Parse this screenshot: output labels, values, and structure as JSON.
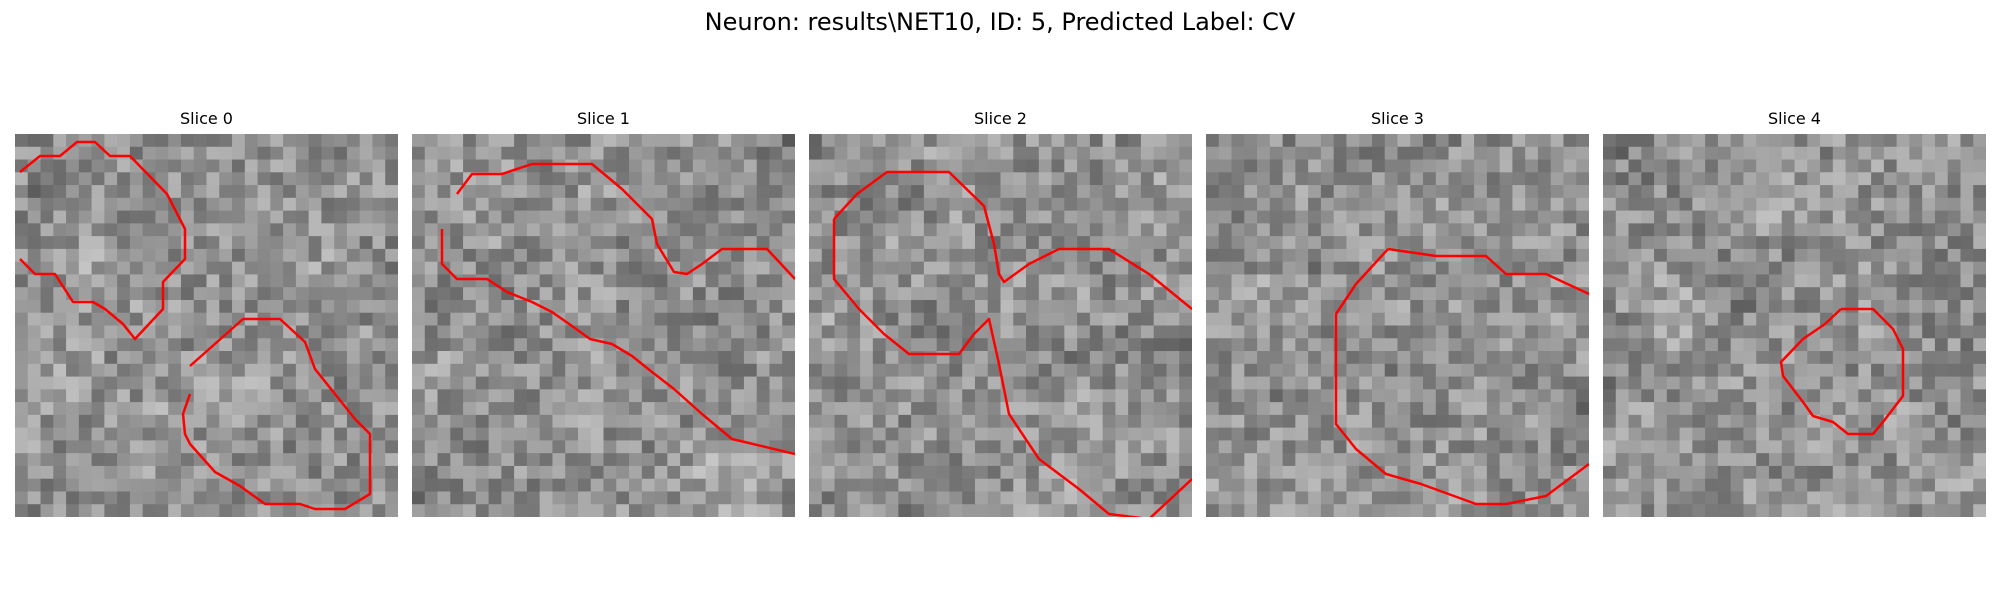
{
  "figure": {
    "title": "Neuron: results\\NET10, ID: 5, Predicted Label: CV"
  },
  "contour_color": "#ff0000",
  "panels": [
    {
      "title": "Slice 0"
    },
    {
      "title": "Slice 1"
    },
    {
      "title": "Slice 2"
    },
    {
      "title": "Slice 3"
    },
    {
      "title": "Slice 4"
    }
  ]
}
